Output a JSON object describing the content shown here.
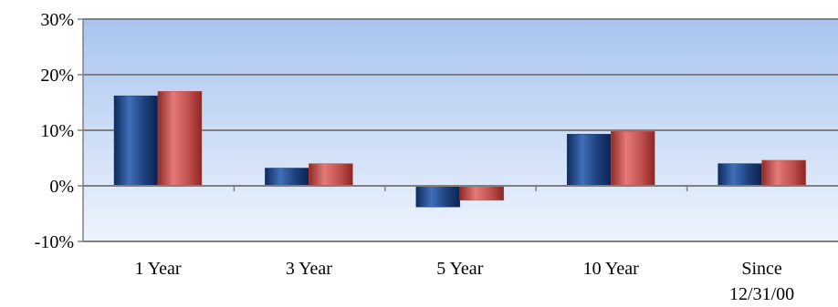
{
  "chart_data": {
    "type": "bar",
    "title": "",
    "xlabel": "",
    "ylabel": "",
    "categories": [
      [
        "1 Year"
      ],
      [
        "3 Year"
      ],
      [
        "5 Year"
      ],
      [
        "10 Year"
      ],
      [
        "Since",
        "12/31/00"
      ]
    ],
    "series": [
      {
        "values": [
          16.2,
          3.2,
          -3.8,
          9.3,
          4.0
        ],
        "color": "#1f3f7a"
      },
      {
        "values": [
          17.0,
          4.0,
          -2.6,
          9.8,
          4.6
        ],
        "color": "#c0504d"
      }
    ],
    "ylim": [
      -10,
      30
    ],
    "yticks": [
      {
        "value": 30,
        "label": "30%"
      },
      {
        "value": 20,
        "label": "20%"
      },
      {
        "value": 10,
        "label": "10%"
      },
      {
        "value": 0,
        "label": "0%"
      },
      {
        "value": -10,
        "label": "-10%"
      }
    ],
    "grid": true,
    "legend": "none",
    "background_gradient": [
      "#a9c5ef",
      "#eef4fd"
    ]
  }
}
